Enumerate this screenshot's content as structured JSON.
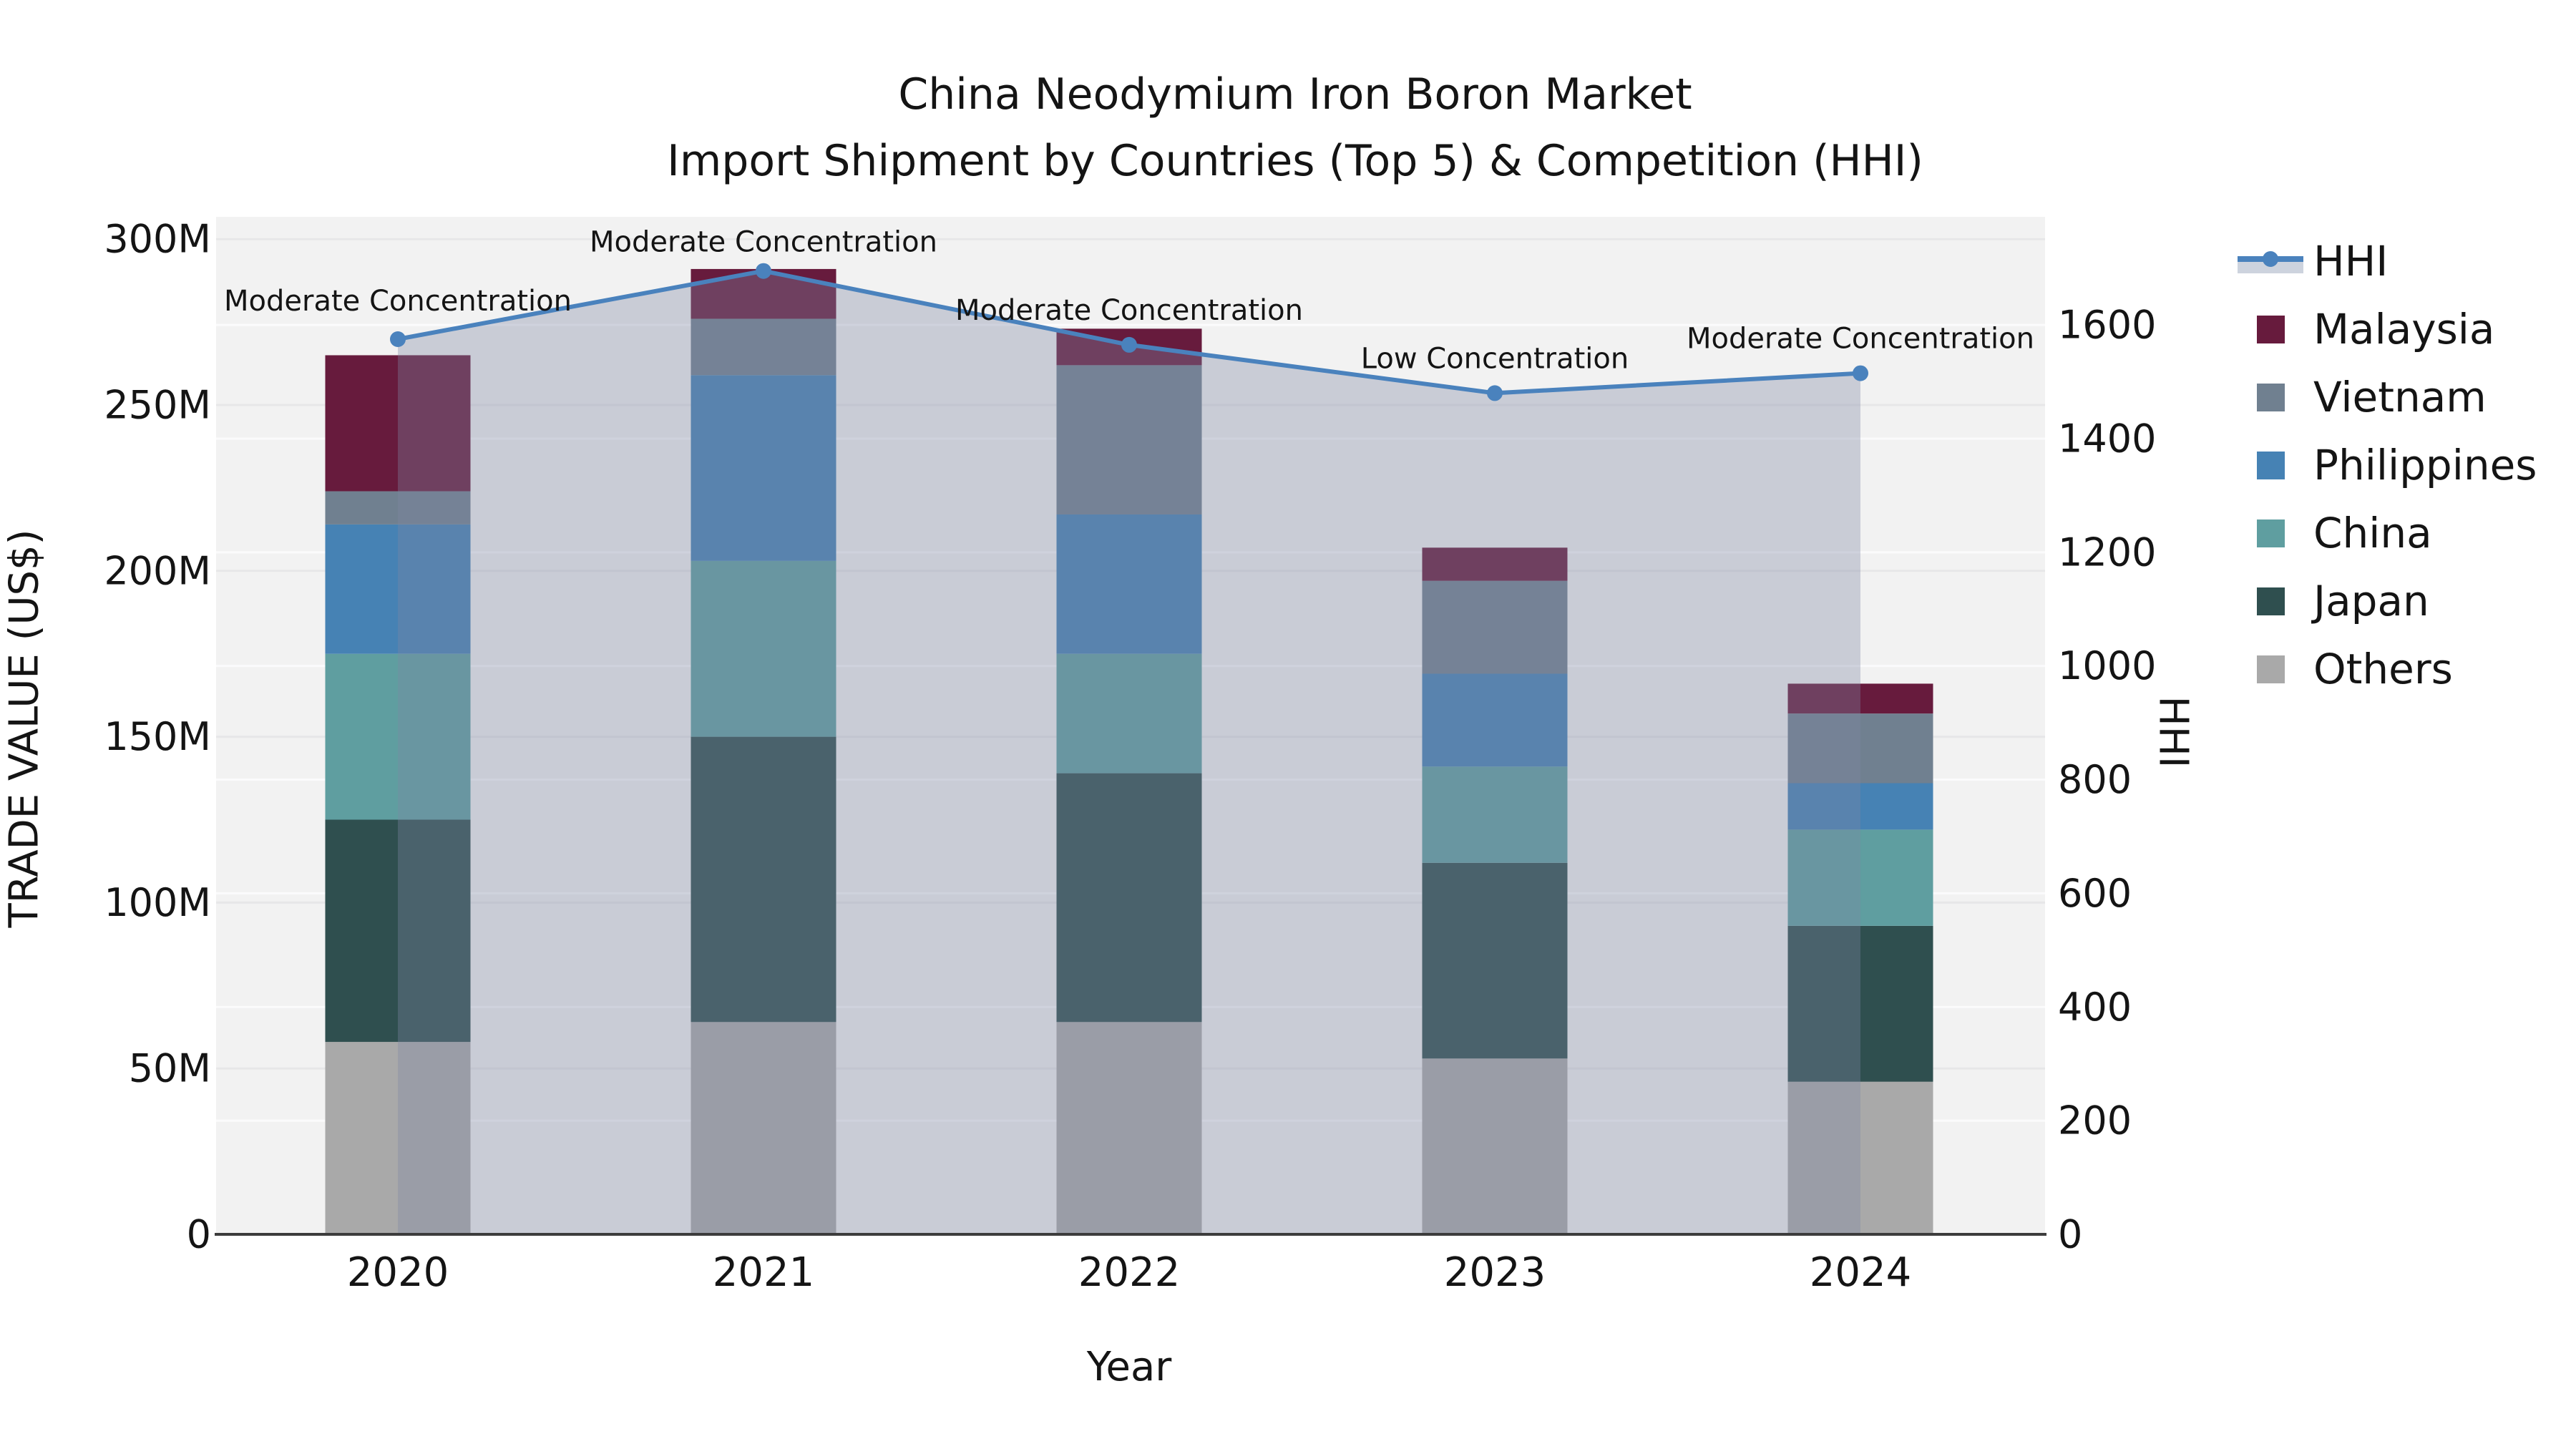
{
  "title": {
    "line1": "China Neodymium Iron Boron Market",
    "line2": "Import Shipment by Countries (Top 5) & Competition (HHI)"
  },
  "axes": {
    "left": {
      "label": "TRADE VALUE (US$)",
      "ticks": [
        {
          "value": 0,
          "label": "0"
        },
        {
          "value": 50,
          "label": "50M"
        },
        {
          "value": 100,
          "label": "100M"
        },
        {
          "value": 150,
          "label": "150M"
        },
        {
          "value": 200,
          "label": "200M"
        },
        {
          "value": 250,
          "label": "250M"
        },
        {
          "value": 300,
          "label": "300M"
        }
      ]
    },
    "right": {
      "label": "HHI",
      "ticks": [
        0,
        200,
        400,
        600,
        800,
        1000,
        1200,
        1400,
        1600
      ]
    },
    "x": {
      "label": "Year",
      "categories": [
        "2020",
        "2021",
        "2022",
        "2023",
        "2024"
      ]
    }
  },
  "legend": {
    "items": [
      {
        "label": "HHI",
        "type": "line",
        "color_key": "hhi_line"
      },
      {
        "label": "Malaysia",
        "type": "patch",
        "color_key": "malaysia"
      },
      {
        "label": "Vietnam",
        "type": "patch",
        "color_key": "vietnam"
      },
      {
        "label": "Philippines",
        "type": "patch",
        "color_key": "philippines"
      },
      {
        "label": "China",
        "type": "patch",
        "color_key": "china"
      },
      {
        "label": "Japan",
        "type": "patch",
        "color_key": "japan"
      },
      {
        "label": "Others",
        "type": "patch",
        "color_key": "others"
      }
    ]
  },
  "colors": {
    "malaysia": "#671b3d",
    "vietnam": "#708090",
    "philippines": "#4682b4",
    "china": "#5f9ea0",
    "japan": "#2f4f4f",
    "others": "#a9a9a9",
    "hhi_line": "#4a82bd",
    "hhi_fill_overlay": "rgba(125,136,162,0.35)",
    "hhi_legend_band": "#cdd3de",
    "plot_bg": "#f2f2f2",
    "grid_trade": "#e7e7e8",
    "grid_hhi": "#fbfbfc",
    "axis_line": "#3c3c3c",
    "text": "#141414"
  },
  "chart_data": {
    "type": "bar",
    "subtype": "stacked-bars-with-line-overlay",
    "title": "China Neodymium Iron Boron Market — Import Shipment by Countries (Top 5) & Competition (HHI)",
    "xlabel": "Year",
    "ylabel_left": "TRADE VALUE (US$)",
    "ylabel_right": "HHI",
    "categories": [
      "2020",
      "2021",
      "2022",
      "2023",
      "2024"
    ],
    "unit": "US$ millions",
    "stack_order": "bottom_to_top",
    "series": [
      {
        "name": "Others",
        "values": [
          58,
          64,
          64,
          53,
          46
        ]
      },
      {
        "name": "Japan",
        "values": [
          67,
          86,
          75,
          59,
          47
        ]
      },
      {
        "name": "China",
        "values": [
          50,
          53,
          36,
          29,
          29
        ]
      },
      {
        "name": "Philippines",
        "values": [
          39,
          56,
          42,
          28,
          14
        ]
      },
      {
        "name": "Vietnam",
        "values": [
          10,
          17,
          45,
          28,
          21
        ]
      },
      {
        "name": "Malaysia",
        "values": [
          41,
          15,
          11,
          10,
          9
        ]
      }
    ],
    "totals": [
      265,
      291,
      273,
      207,
      166
    ],
    "line_series": {
      "name": "HHI",
      "axis": "right",
      "values": [
        1575,
        1695,
        1565,
        1480,
        1515
      ],
      "filled_to_zero": true
    },
    "annotations": [
      {
        "category": "2020",
        "text": "Moderate Concentration"
      },
      {
        "category": "2021",
        "text": "Moderate Concentration"
      },
      {
        "category": "2022",
        "text": "Moderate Concentration"
      },
      {
        "category": "2023",
        "text": "Low Concentration"
      },
      {
        "category": "2024",
        "text": "Moderate Concentration"
      }
    ],
    "ylim_left": [
      0,
      307
    ],
    "ylim_right": [
      0,
      1790
    ],
    "grid": true,
    "legend_position": "right"
  }
}
